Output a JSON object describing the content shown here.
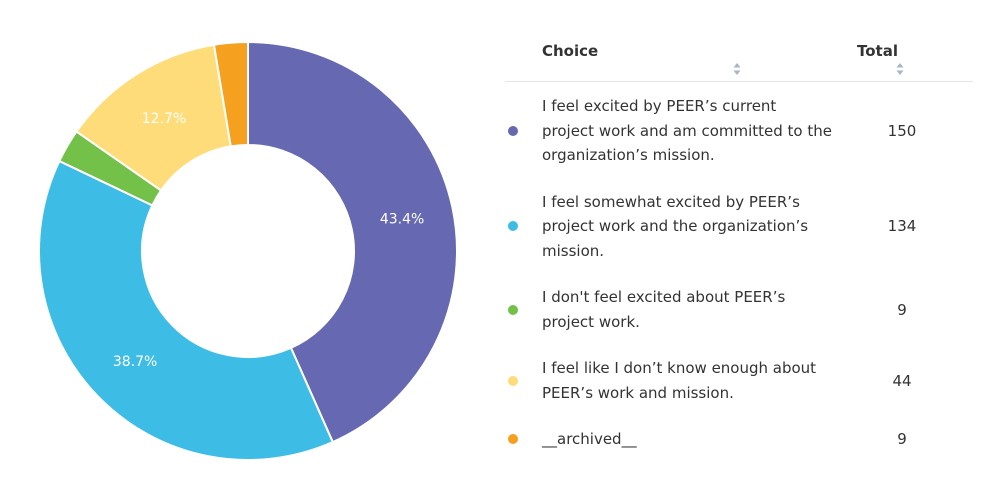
{
  "table": {
    "col_choice": "Choice",
    "col_total": "Total",
    "rows": [
      {
        "choice": "I feel excited by PEER’s current project work and am committed to the organization’s mission.",
        "total": "150",
        "color": "#6669b1"
      },
      {
        "choice": "I feel somewhat excited by PEER’s project work and the organization’s mission.",
        "total": "134",
        "color": "#3dbce5"
      },
      {
        "choice": "I don't feel excited about PEER’s project work.",
        "total": "9",
        "color": "#74c14a"
      },
      {
        "choice": "I feel like I don’t know enough about PEER’s work and mission.",
        "total": "44",
        "color": "#fddc79"
      },
      {
        "choice": "__archived__",
        "total": "9",
        "color": "#f5a01f"
      }
    ]
  },
  "chart_data": {
    "type": "pie",
    "donut": true,
    "categories": [
      "I feel excited by PEER’s current project work and am committed to the organization’s mission.",
      "I feel somewhat excited by PEER’s project work and the organization’s mission.",
      "I don't feel excited about PEER’s project work.",
      "I feel like I don’t know enough about PEER’s work and mission.",
      "__archived__"
    ],
    "values": [
      150,
      134,
      9,
      44,
      9
    ],
    "colors": [
      "#6669b1",
      "#3dbce5",
      "#74c14a",
      "#fddc79",
      "#f5a01f"
    ],
    "slice_labels": [
      "43.4%",
      "38.7%",
      "",
      "12.7%",
      ""
    ],
    "legend": "right"
  }
}
